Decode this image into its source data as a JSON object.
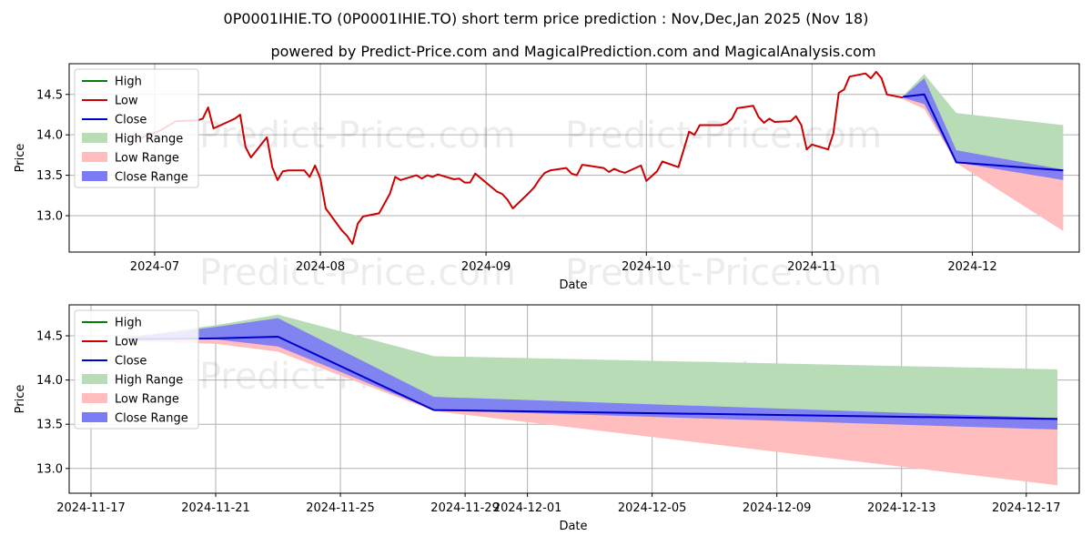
{
  "header": {
    "title": "0P0001IHIE.TO (0P0001IHIE.TO) short term price prediction : Nov,Dec,Jan 2025 (Nov 18)",
    "subtitle": "powered by Predict-Price.com and MagicalPrediction.com and MagicalAnalysis.com"
  },
  "watermark": "Predict-Price.com",
  "colors": {
    "high": "#008000",
    "low": "#cc0000",
    "close": "#0000cc",
    "high_range": "#b8dcb5",
    "low_range": "#ffbdbd",
    "close_range": "#7b7bf5"
  },
  "legend": {
    "position": "upper-left",
    "items": [
      "High",
      "Low",
      "Close",
      "High Range",
      "Low Range",
      "Close Range"
    ]
  },
  "chart_data": [
    {
      "type": "line",
      "xlabel": "Date",
      "ylabel": "Price",
      "xlim": [
        "2024-06-15",
        "2024-12-21"
      ],
      "ylim": [
        12.55,
        14.88
      ],
      "grid": true,
      "xticks": [
        "2024-07",
        "2024-08",
        "2024-09",
        "2024-10",
        "2024-11",
        "2024-12"
      ],
      "xtick_dates": [
        "2024-07-01",
        "2024-08-01",
        "2024-09-01",
        "2024-10-01",
        "2024-11-01",
        "2024-12-01"
      ],
      "yticks": [
        "13.0",
        "13.5",
        "14.0",
        "14.5"
      ],
      "ytick_values": [
        13.0,
        13.5,
        14.0,
        14.5
      ],
      "series": [
        {
          "name": "Low",
          "x": [
            "2024-06-28",
            "2024-07-02",
            "2024-07-05",
            "2024-07-09",
            "2024-07-10",
            "2024-07-11",
            "2024-07-12",
            "2024-07-15",
            "2024-07-16",
            "2024-07-17",
            "2024-07-18",
            "2024-07-19",
            "2024-07-22",
            "2024-07-23",
            "2024-07-24",
            "2024-07-25",
            "2024-07-26",
            "2024-07-29",
            "2024-07-30",
            "2024-07-31",
            "2024-08-01",
            "2024-08-02",
            "2024-08-05",
            "2024-08-06",
            "2024-08-07",
            "2024-08-08",
            "2024-08-09",
            "2024-08-12",
            "2024-08-13",
            "2024-08-14",
            "2024-08-15",
            "2024-08-16",
            "2024-08-19",
            "2024-08-20",
            "2024-08-21",
            "2024-08-22",
            "2024-08-23",
            "2024-08-26",
            "2024-08-27",
            "2024-08-28",
            "2024-08-29",
            "2024-08-30",
            "2024-09-03",
            "2024-09-04",
            "2024-09-05",
            "2024-09-06",
            "2024-09-09",
            "2024-09-10",
            "2024-09-11",
            "2024-09-12",
            "2024-09-13",
            "2024-09-16",
            "2024-09-17",
            "2024-09-18",
            "2024-09-19",
            "2024-09-20",
            "2024-09-23",
            "2024-09-24",
            "2024-09-25",
            "2024-09-26",
            "2024-09-27",
            "2024-09-30",
            "2024-10-01",
            "2024-10-02",
            "2024-10-03",
            "2024-10-04",
            "2024-10-07",
            "2024-10-08",
            "2024-10-09",
            "2024-10-10",
            "2024-10-11",
            "2024-10-15",
            "2024-10-16",
            "2024-10-17",
            "2024-10-18",
            "2024-10-21",
            "2024-10-22",
            "2024-10-23",
            "2024-10-24",
            "2024-10-25",
            "2024-10-28",
            "2024-10-29",
            "2024-10-30",
            "2024-10-31",
            "2024-11-01",
            "2024-11-04",
            "2024-11-05",
            "2024-11-06",
            "2024-11-07",
            "2024-11-08",
            "2024-11-11",
            "2024-11-12",
            "2024-11-13",
            "2024-11-14",
            "2024-11-15",
            "2024-11-18"
          ],
          "y": [
            13.95,
            14.05,
            14.17,
            14.18,
            14.2,
            14.34,
            14.08,
            14.17,
            14.2,
            14.25,
            13.85,
            13.72,
            13.97,
            13.6,
            13.44,
            13.55,
            13.56,
            13.56,
            13.48,
            13.62,
            13.46,
            13.09,
            12.82,
            12.75,
            12.65,
            12.9,
            12.99,
            13.03,
            13.15,
            13.27,
            13.48,
            13.44,
            13.5,
            13.46,
            13.5,
            13.48,
            13.51,
            13.45,
            13.46,
            13.41,
            13.41,
            13.52,
            13.3,
            13.27,
            13.2,
            13.09,
            13.28,
            13.35,
            13.45,
            13.53,
            13.56,
            13.59,
            13.52,
            13.5,
            13.63,
            13.62,
            13.59,
            13.54,
            13.58,
            13.55,
            13.53,
            13.62,
            13.43,
            13.49,
            13.55,
            13.67,
            13.6,
            13.82,
            14.04,
            14.0,
            14.12,
            14.12,
            14.14,
            14.2,
            14.33,
            14.36,
            14.22,
            14.15,
            14.2,
            14.16,
            14.17,
            14.23,
            14.12,
            13.82,
            13.88,
            13.82,
            14.02,
            14.52,
            14.56,
            14.72,
            14.76,
            14.7,
            14.78,
            14.7,
            14.5,
            14.46
          ]
        },
        {
          "name": "Close",
          "x": [
            "2024-11-18",
            "2024-11-22",
            "2024-11-28",
            "2024-12-18"
          ],
          "y": [
            14.47,
            14.5,
            13.66,
            13.56
          ]
        }
      ],
      "ranges": [
        {
          "name": "High Range",
          "x": [
            "2024-11-18",
            "2024-11-22",
            "2024-11-28",
            "2024-12-18"
          ],
          "upper": [
            14.48,
            14.75,
            14.27,
            14.12
          ],
          "lower": [
            14.46,
            14.46,
            13.66,
            13.56
          ]
        },
        {
          "name": "Low Range",
          "x": [
            "2024-11-18",
            "2024-11-22",
            "2024-11-28",
            "2024-12-18"
          ],
          "upper": [
            14.46,
            14.5,
            13.66,
            13.56
          ],
          "lower": [
            14.44,
            14.32,
            13.65,
            12.81
          ]
        },
        {
          "name": "Close Range",
          "x": [
            "2024-11-18",
            "2024-11-22",
            "2024-11-28",
            "2024-12-18"
          ],
          "upper": [
            14.47,
            14.7,
            13.81,
            13.57
          ],
          "lower": [
            14.46,
            14.38,
            13.66,
            13.44
          ]
        }
      ]
    },
    {
      "type": "line",
      "xlabel": "Date",
      "ylabel": "Price",
      "xlim": [
        "2024-11-16.3",
        "2024-12-18.7"
      ],
      "ylim": [
        12.72,
        14.85
      ],
      "grid": true,
      "xticks": [
        "2024-11-17",
        "2024-11-21",
        "2024-11-25",
        "2024-11-29",
        "2024-12-01",
        "2024-12-05",
        "2024-12-09",
        "2024-12-13",
        "2024-12-17"
      ],
      "xtick_dates": [
        "2024-11-17",
        "2024-11-21",
        "2024-11-25",
        "2024-11-29",
        "2024-12-01",
        "2024-12-05",
        "2024-12-09",
        "2024-12-13",
        "2024-12-17"
      ],
      "yticks": [
        "13.0",
        "13.5",
        "14.0",
        "14.5"
      ],
      "ytick_values": [
        13.0,
        13.5,
        14.0,
        14.5
      ],
      "series": [
        {
          "name": "Close",
          "x": [
            "2024-11-18",
            "2024-11-21",
            "2024-11-23",
            "2024-11-28",
            "2024-12-18"
          ],
          "y": [
            14.46,
            14.47,
            14.49,
            13.66,
            13.56
          ]
        }
      ],
      "ranges": [
        {
          "name": "High Range",
          "x": [
            "2024-11-18",
            "2024-11-21",
            "2024-11-23",
            "2024-11-28",
            "2024-12-18"
          ],
          "upper": [
            14.48,
            14.62,
            14.74,
            14.27,
            14.12
          ],
          "lower": [
            14.46,
            14.47,
            14.49,
            13.66,
            13.56
          ]
        },
        {
          "name": "Low Range",
          "x": [
            "2024-11-18",
            "2024-11-21",
            "2024-11-23",
            "2024-11-28",
            "2024-12-18"
          ],
          "upper": [
            14.46,
            14.47,
            14.49,
            13.66,
            13.56
          ],
          "lower": [
            14.44,
            14.41,
            14.32,
            13.65,
            12.81
          ]
        },
        {
          "name": "Close Range",
          "x": [
            "2024-11-18",
            "2024-11-21",
            "2024-11-23",
            "2024-11-28",
            "2024-12-18"
          ],
          "upper": [
            14.47,
            14.6,
            14.7,
            13.81,
            13.57
          ],
          "lower": [
            14.46,
            14.46,
            14.38,
            13.66,
            13.44
          ]
        }
      ]
    }
  ]
}
